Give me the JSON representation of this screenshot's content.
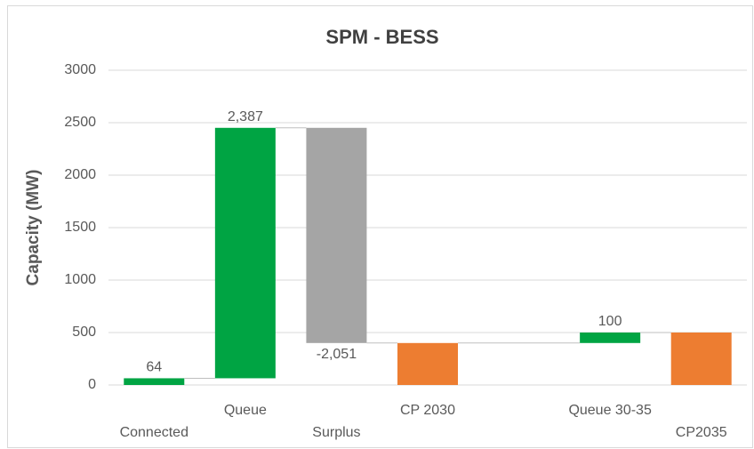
{
  "chart_data": {
    "type": "waterfall",
    "title": "SPM - BESS",
    "y_label": "Capacity (MW)",
    "categories": [
      "Connected",
      "Queue",
      "Surplus",
      "CP 2030",
      null,
      "Queue 30-35",
      "CP2035"
    ],
    "values": [
      64,
      2387,
      -2051,
      400,
      null,
      100,
      500
    ],
    "value_labels": [
      "64",
      "2,387",
      "-2,051",
      null,
      null,
      "100",
      null
    ],
    "point_types": [
      "increase",
      "increase",
      "decrease",
      "total",
      null,
      "increase",
      "total"
    ],
    "colors": {
      "increase": "#00a443",
      "decrease": "#a5a5a5",
      "total": "#ed7d31"
    },
    "ylim": [
      0,
      3000
    ],
    "yticks": [
      0,
      500,
      1000,
      1500,
      2000,
      2500,
      3000
    ],
    "grid": true
  }
}
